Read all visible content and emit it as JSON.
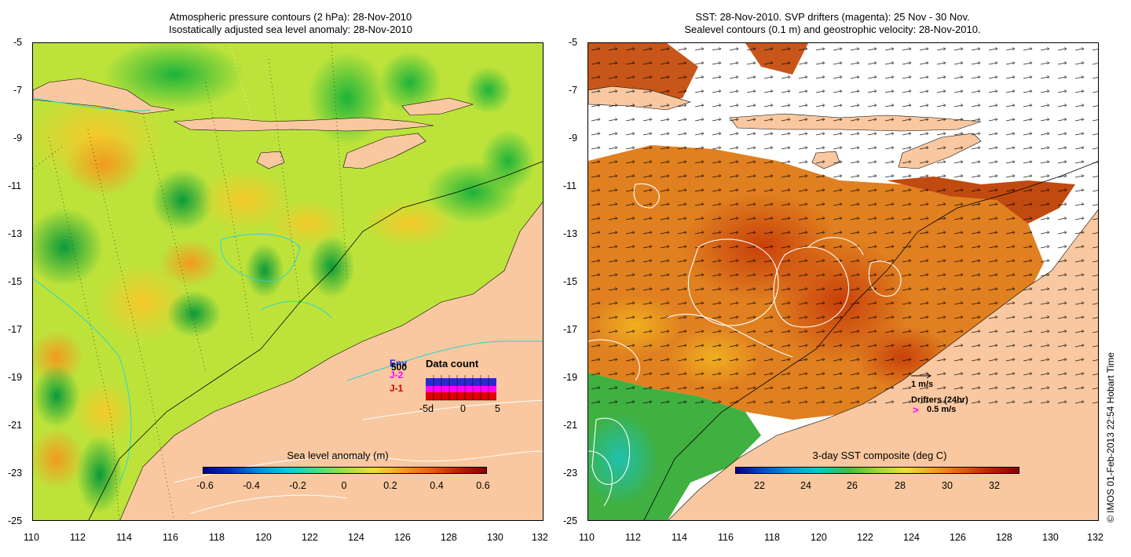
{
  "left_panel": {
    "title_line1": "Atmospheric pressure contours (2 hPa): 28-Nov-2010",
    "title_line2": "Isostatically adjusted sea level anomaly: 28-Nov-2010",
    "colorbar": {
      "title": "Sea level anomaly (m)",
      "ticks": [
        "-0.6",
        "-0.4",
        "-0.2",
        "0",
        "0.2",
        "0.4",
        "0.6"
      ]
    },
    "inset": {
      "title": "Data count",
      "series": [
        "Env",
        "J-2",
        "J-1"
      ],
      "count_label": "500",
      "x_ticks": [
        "-5d",
        "0",
        "5"
      ]
    }
  },
  "right_panel": {
    "title_line1": "SST: 28-Nov-2010. SVP drifters (magenta): 25 Nov - 30 Nov.",
    "title_line2": "Sealevel contours (0.1 m) and geostrophic velocity: 28-Nov-2010.",
    "colorbar": {
      "title": "3-day SST composite (deg C)",
      "ticks": [
        "22",
        "24",
        "26",
        "28",
        "30",
        "32"
      ]
    },
    "legend": {
      "velocity_label": "1 m/s",
      "drifters_label": "Drifters (24hr)",
      "drifter_marker": ">",
      "drifter_speed": "0.5 m/s"
    }
  },
  "axes": {
    "y_ticks": [
      "-5",
      "-7",
      "-9",
      "-11",
      "-13",
      "-15",
      "-17",
      "-19",
      "-21",
      "-23",
      "-25"
    ],
    "x_ticks": [
      "110",
      "112",
      "114",
      "116",
      "118",
      "120",
      "122",
      "124",
      "126",
      "128",
      "130",
      "132"
    ]
  },
  "copyright": "© IMOS 01-Feb-2013 22:54 Hobart Time",
  "colors": {
    "land": "#f9c8a0",
    "sla_background": "#b8e63a",
    "sst_orange": "#e07a1a",
    "sst_green": "#3ab54a",
    "drifter": "#ff00ff",
    "contour_white": "#ffffff",
    "contour_cyan": "#2ad4d4"
  }
}
